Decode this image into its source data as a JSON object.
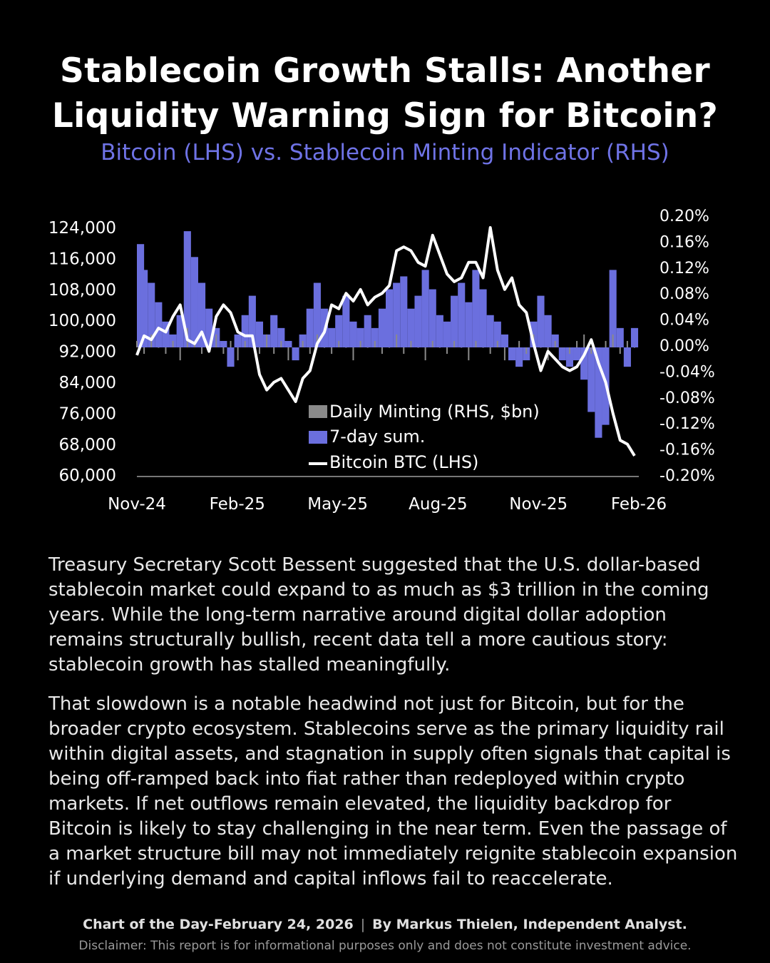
{
  "header": {
    "title_line1": "Stablecoin Growth Stalls: Another",
    "title_line2": "Liquidity Warning Sign for Bitcoin?",
    "subtitle": "Bitcoin (LHS) vs. Stablecoin Minting Indicator (RHS)"
  },
  "chart_data": {
    "type": "bar+line",
    "title": "",
    "x_ticks": [
      "Nov-24",
      "Feb-25",
      "May-25",
      "Aug-25",
      "Nov-25",
      "Feb-26"
    ],
    "left_axis": {
      "ticks": [
        "124,000",
        "116,000",
        "108,000",
        "100,000",
        "92,000",
        "84,000",
        "76,000",
        "68,000",
        "60,000"
      ],
      "range": [
        60000,
        124000
      ]
    },
    "right_axis": {
      "ticks": [
        "0.20%",
        "0.16%",
        "0.12%",
        "0.08%",
        "0.04%",
        "0.00%",
        "-0.04%",
        "-0.08%",
        "-0.12%",
        "-0.16%",
        "-0.20%"
      ],
      "range": [
        -0.2,
        0.2
      ],
      "unit": "%"
    },
    "legend": {
      "position": "bottom-center",
      "items": [
        "Daily Minting (RHS, $bn)",
        "7-day sum.",
        "Bitcoin BTC (LHS)"
      ]
    },
    "colors": {
      "daily": "#8a8a8a",
      "sum7": "#6b6fde",
      "btc": "#ffffff"
    },
    "x_range": [
      "2024-11",
      "2026-02"
    ],
    "series": [
      {
        "name": "Bitcoin BTC (LHS)",
        "axis": "left",
        "type": "line",
        "frequency": "weekly",
        "values": [
          91000,
          96000,
          95000,
          98000,
          97000,
          101000,
          104000,
          95000,
          94000,
          97000,
          92000,
          101000,
          104000,
          102000,
          97000,
          96000,
          96000,
          86000,
          82000,
          84000,
          85000,
          82000,
          79000,
          85000,
          87000,
          94000,
          97000,
          104000,
          103000,
          107000,
          105000,
          108000,
          104000,
          106000,
          107000,
          109000,
          118000,
          119000,
          118000,
          115000,
          114000,
          122000,
          117000,
          112000,
          110000,
          111000,
          115000,
          115000,
          111000,
          124000,
          113000,
          108000,
          111000,
          104000,
          102000,
          94000,
          87000,
          92000,
          90000,
          88000,
          87000,
          88000,
          91000,
          95000,
          89000,
          84000,
          76000,
          69000,
          68000,
          65000
        ]
      },
      {
        "name": "7-day sum.",
        "axis": "right",
        "type": "bar",
        "frequency": "weekly",
        "values": [
          0.16,
          0.12,
          0.1,
          0.07,
          0.04,
          0.02,
          0.05,
          0.18,
          0.14,
          0.1,
          0.06,
          0.03,
          0.01,
          -0.03,
          0.02,
          0.05,
          0.08,
          0.04,
          0.02,
          0.05,
          0.03,
          0.01,
          -0.02,
          0.02,
          0.06,
          0.1,
          0.06,
          0.03,
          0.05,
          0.08,
          0.04,
          0.03,
          0.05,
          0.03,
          0.06,
          0.09,
          0.1,
          0.11,
          0.06,
          0.08,
          0.12,
          0.09,
          0.05,
          0.04,
          0.08,
          0.1,
          0.07,
          0.12,
          0.09,
          0.05,
          0.04,
          0.02,
          -0.02,
          -0.03,
          -0.02,
          0.04,
          0.08,
          0.05,
          0.02,
          -0.02,
          -0.03,
          -0.02,
          -0.05,
          -0.1,
          -0.14,
          -0.12,
          0.12,
          0.03,
          -0.03,
          0.03
        ]
      },
      {
        "name": "Daily Minting (RHS, $bn)",
        "axis": "right",
        "type": "bar",
        "frequency": "weekly",
        "values": [
          0.01,
          -0.01,
          0.02,
          0.0,
          -0.01,
          0.01,
          -0.02,
          0.03,
          0.01,
          -0.01,
          0.0,
          0.02,
          -0.01,
          0.01,
          -0.02,
          0.01,
          0.0,
          -0.01,
          0.02,
          -0.01,
          0.01,
          -0.02,
          0.0,
          0.01,
          -0.01,
          0.02,
          0.0,
          -0.01,
          0.01,
          0.0,
          -0.02,
          0.01,
          0.0,
          0.01,
          -0.01,
          0.0,
          0.02,
          -0.01,
          0.01,
          0.0,
          -0.02,
          0.01,
          0.0,
          -0.01,
          0.01,
          0.0,
          -0.02,
          0.01,
          0.0,
          -0.01,
          0.01,
          -0.02,
          0.0,
          0.01,
          -0.01,
          0.02,
          0.0,
          -0.02,
          0.01,
          0.0,
          -0.01,
          0.01,
          0.02,
          -0.01,
          0.0,
          0.01,
          0.02,
          -0.01,
          0.01,
          0.0
        ]
      }
    ],
    "grid": false
  },
  "body": {
    "paragraph1": "Treasury Secretary Scott Bessent suggested that the U.S. dollar-based stablecoin market could expand to as much as $3 trillion in the coming years. While the long-term narrative around digital dollar adoption remains structurally bullish, recent data tell a more cautious story: stablecoin growth has stalled meaningfully.",
    "paragraph2": "That slowdown is a notable headwind not just for Bitcoin, but for the broader crypto ecosystem. Stablecoins serve as the primary liquidity rail within digital assets, and stagnation in supply often signals that capital is being off-ramped back into fiat rather than redeployed within crypto markets. If net outflows remain elevated, the liquidity backdrop for Bitcoin is likely to stay challenging in the near term. Even the passage of a market structure bill may not immediately reignite stablecoin expansion if underlying demand and capital inflows fail to reaccelerate."
  },
  "footer": {
    "chart_of_day": "Chart of the Day-February 24, 2026",
    "separator": "|",
    "author": "By Markus Thielen, Independent Analyst.",
    "disclaimer": "Disclaimer: This report is for informational purposes only and does not constitute investment advice."
  }
}
